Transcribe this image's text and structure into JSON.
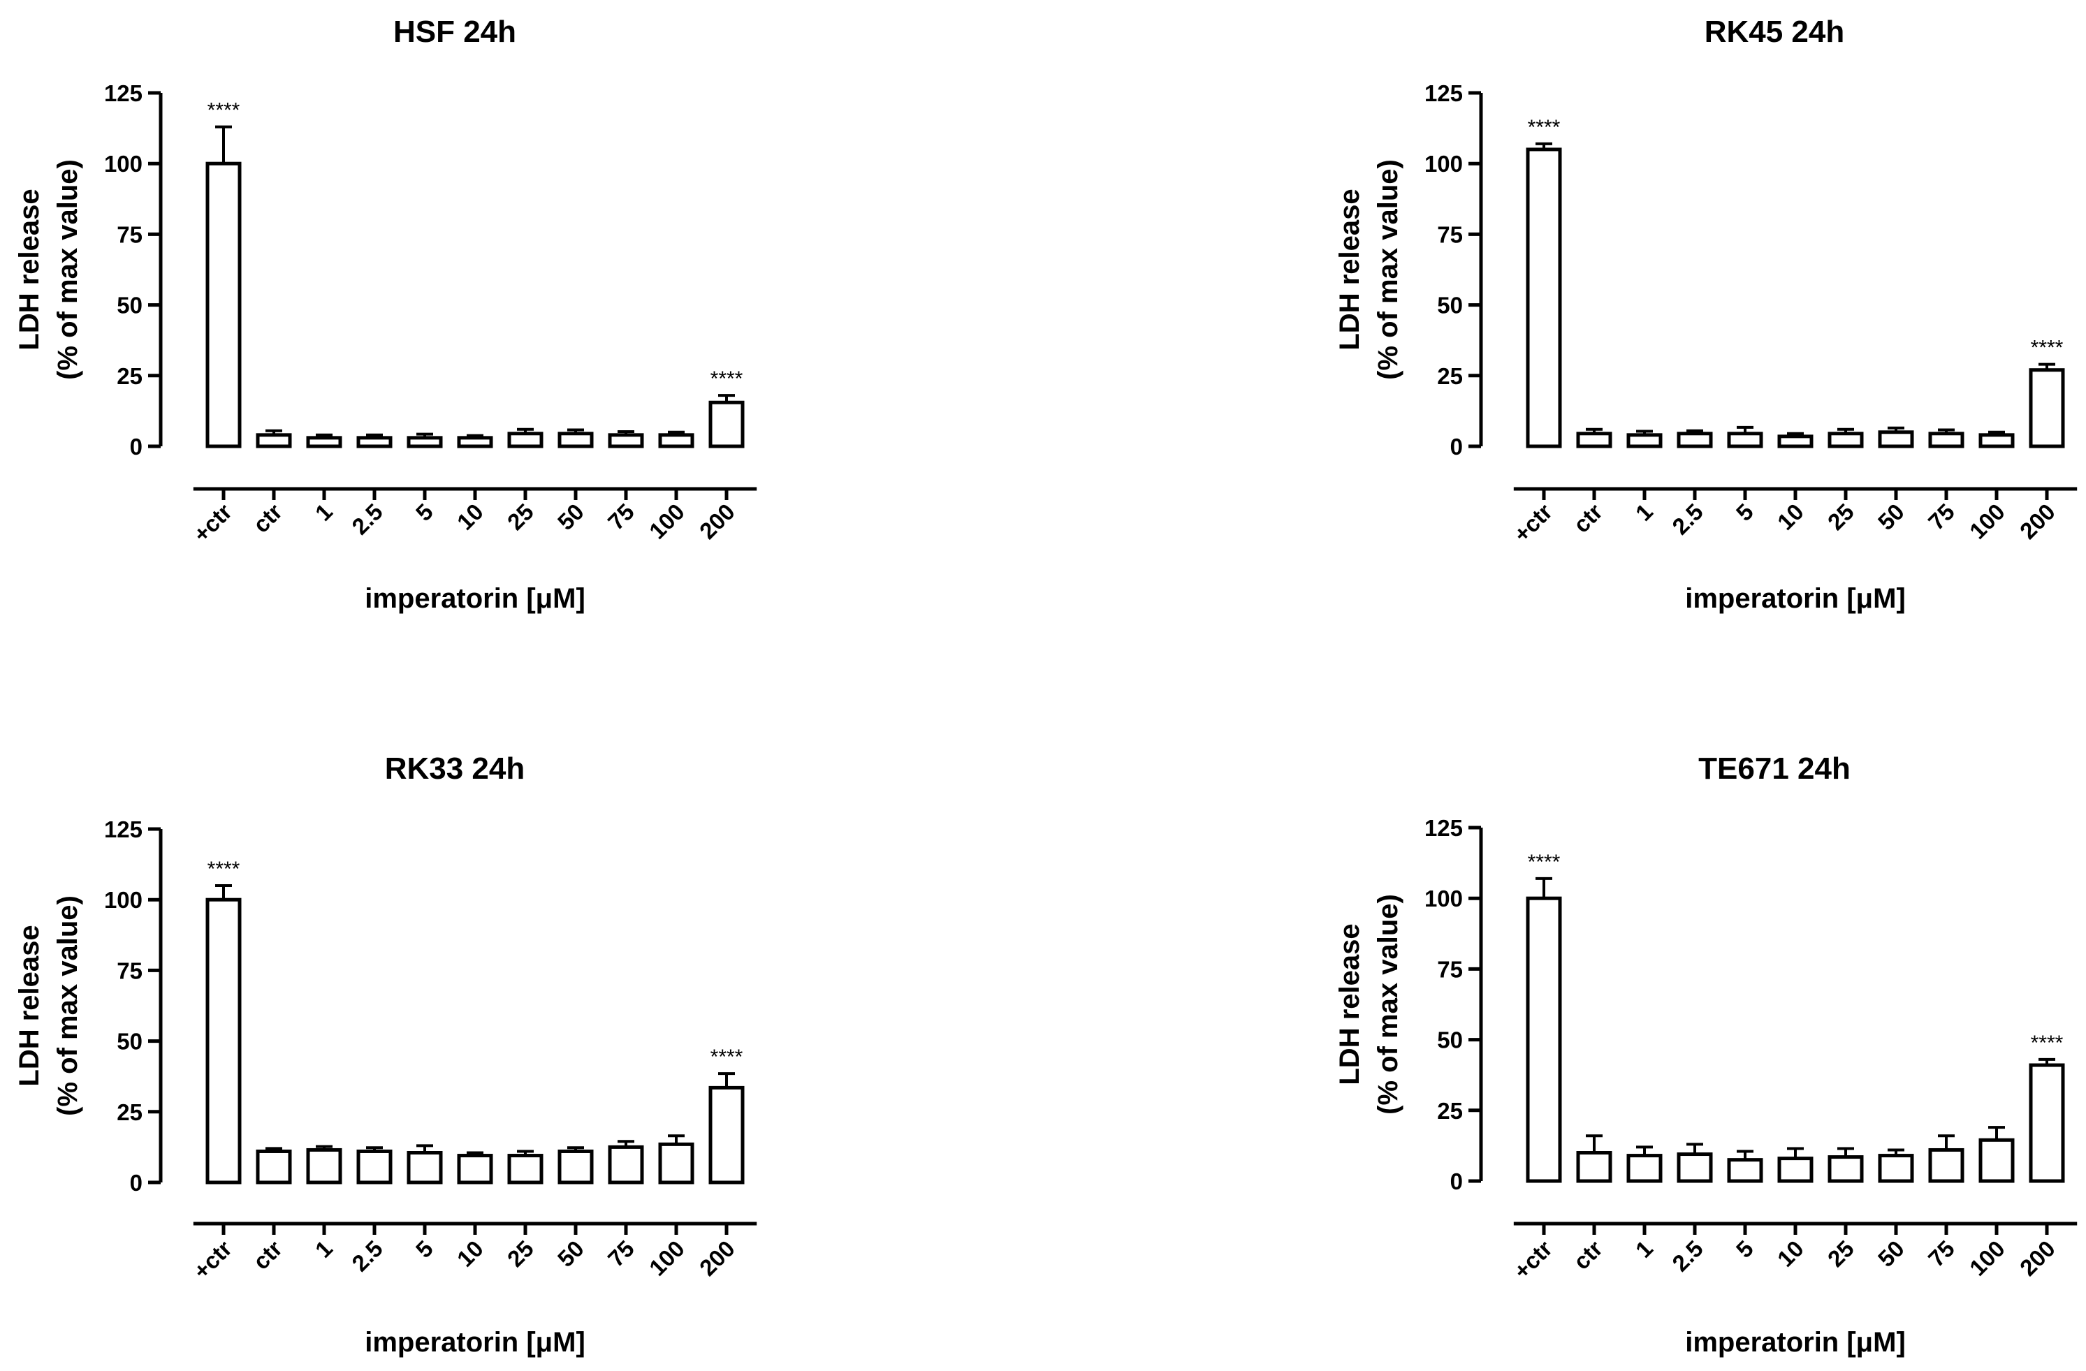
{
  "chart_data": [
    {
      "type": "bar",
      "title": "HSF 24h",
      "xlabel": "imperatorin [μM]",
      "ylabel": [
        "LDH release",
        "(% of max value)"
      ],
      "ylim": [
        0,
        125
      ],
      "yticks": [
        0,
        25,
        50,
        75,
        100,
        125
      ],
      "categories": [
        "+ctr",
        "ctr",
        "1",
        "2.5",
        "5",
        "10",
        "25",
        "50",
        "75",
        "100",
        "200"
      ],
      "values": [
        100,
        4,
        3,
        3,
        3,
        3,
        4.5,
        4.5,
        4,
        4,
        15.5
      ],
      "errors": [
        13,
        1.5,
        1,
        1,
        1.3,
        0.8,
        1.5,
        1.3,
        1.2,
        1,
        2.5
      ],
      "significance": [
        "****",
        "",
        "",
        "",
        "",
        "",
        "",
        "",
        "",
        "",
        "****"
      ]
    },
    {
      "type": "bar",
      "title": "RK45 24h",
      "xlabel": "imperatorin [μM]",
      "ylabel": [
        "LDH release",
        "(% of max value)"
      ],
      "ylim": [
        0,
        125
      ],
      "yticks": [
        0,
        25,
        50,
        75,
        100,
        125
      ],
      "categories": [
        "+ctr",
        "ctr",
        "1",
        "2.5",
        "5",
        "10",
        "25",
        "50",
        "75",
        "100",
        "200"
      ],
      "values": [
        105,
        4.5,
        4,
        4.5,
        4.5,
        3.5,
        4.5,
        5,
        4.5,
        4,
        27
      ],
      "errors": [
        2,
        1.5,
        1.3,
        1,
        2.2,
        1,
        1.5,
        1.5,
        1.3,
        1,
        2
      ],
      "significance": [
        "****",
        "",
        "",
        "",
        "",
        "",
        "",
        "",
        "",
        "",
        "****"
      ]
    },
    {
      "type": "bar",
      "title": "RK33 24h",
      "xlabel": "imperatorin [μM]",
      "ylabel": [
        "LDH release",
        "(% of max value)"
      ],
      "ylim": [
        0,
        125
      ],
      "yticks": [
        0,
        25,
        50,
        75,
        100,
        125
      ],
      "categories": [
        "+ctr",
        "ctr",
        "1",
        "2.5",
        "5",
        "10",
        "25",
        "50",
        "75",
        "100",
        "200"
      ],
      "values": [
        100,
        11,
        11.5,
        11,
        10.5,
        9.5,
        9.5,
        11,
        12.5,
        13.5,
        33.5
      ],
      "errors": [
        5,
        1,
        1.2,
        1.3,
        2.5,
        1,
        1.5,
        1.3,
        2,
        3,
        5
      ],
      "significance": [
        "****",
        "",
        "",
        "",
        "",
        "",
        "",
        "",
        "",
        "",
        "****"
      ]
    },
    {
      "type": "bar",
      "title": "TE671 24h",
      "xlabel": "imperatorin [μM]",
      "ylabel": [
        "LDH release",
        "(% of max value)"
      ],
      "ylim": [
        0,
        125
      ],
      "yticks": [
        0,
        25,
        50,
        75,
        100,
        125
      ],
      "categories": [
        "+ctr",
        "ctr",
        "1",
        "2.5",
        "5",
        "10",
        "25",
        "50",
        "75",
        "100",
        "200"
      ],
      "values": [
        100,
        10,
        9,
        9.5,
        7.5,
        8,
        8.5,
        9,
        11,
        14.5,
        41
      ],
      "errors": [
        7,
        6,
        3,
        3.5,
        3,
        3.5,
        3,
        2,
        5,
        4.5,
        2
      ],
      "significance": [
        "****",
        "",
        "",
        "",
        "",
        "",
        "",
        "",
        "",
        "",
        "****"
      ]
    }
  ]
}
